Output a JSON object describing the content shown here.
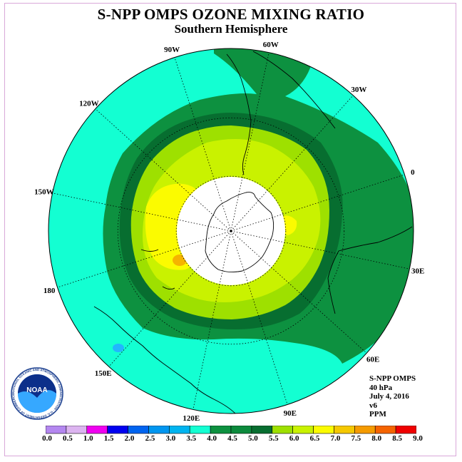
{
  "title": "S-NPP OMPS OZONE MIXING RATIO",
  "subtitle": "Southern Hemisphere",
  "longitude_labels": [
    {
      "text": "90W",
      "lon": -90
    },
    {
      "text": "60W",
      "lon": -60
    },
    {
      "text": "30W",
      "lon": -30
    },
    {
      "text": "0",
      "lon": 0
    },
    {
      "text": "30E",
      "lon": 30
    },
    {
      "text": "60E",
      "lon": 60
    },
    {
      "text": "90E",
      "lon": 90
    },
    {
      "text": "120E",
      "lon": 120
    },
    {
      "text": "150E",
      "lon": 150
    },
    {
      "text": "180",
      "lon": 180
    },
    {
      "text": "150W",
      "lon": -150
    },
    {
      "text": "120W",
      "lon": -120
    }
  ],
  "info": {
    "instrument": "S-NPP OMPS",
    "level": "40 hPa",
    "date": "July 4, 2016",
    "version": "v6",
    "units": "PPM"
  },
  "logo": {
    "text": "NOAA",
    "ring_text": "NATIONAL OCEANIC AND ATMOSPHERIC ADMINISTRATION · U.S. DEPARTMENT OF COMMERCE"
  },
  "colors": {
    "background_field": "#13ffd2",
    "green_mid": "#0d9140",
    "green_dark": "#076e30",
    "lime": "#9ee000",
    "yellow_green": "#c9f200",
    "yellow": "#fbfb00",
    "orange": "#f5b400"
  },
  "colorbar": {
    "labels": [
      "0.0",
      "0.5",
      "1.0",
      "1.5",
      "2.0",
      "2.5",
      "3.0",
      "3.5",
      "4.0",
      "4.5",
      "5.0",
      "5.5",
      "6.0",
      "6.5",
      "7.0",
      "7.5",
      "8.0",
      "8.5",
      "9.0"
    ],
    "colors": [
      "#b487f0",
      "#dcb4f0",
      "#f000f0",
      "#0000f0",
      "#0064f0",
      "#0096f0",
      "#00b4f0",
      "#14ffd2",
      "#0d9140",
      "#0c8a3c",
      "#076e30",
      "#9ee000",
      "#c9f200",
      "#fbfb00",
      "#f5c800",
      "#f59b00",
      "#f56400",
      "#f00000",
      "#8c5a3c"
    ]
  }
}
